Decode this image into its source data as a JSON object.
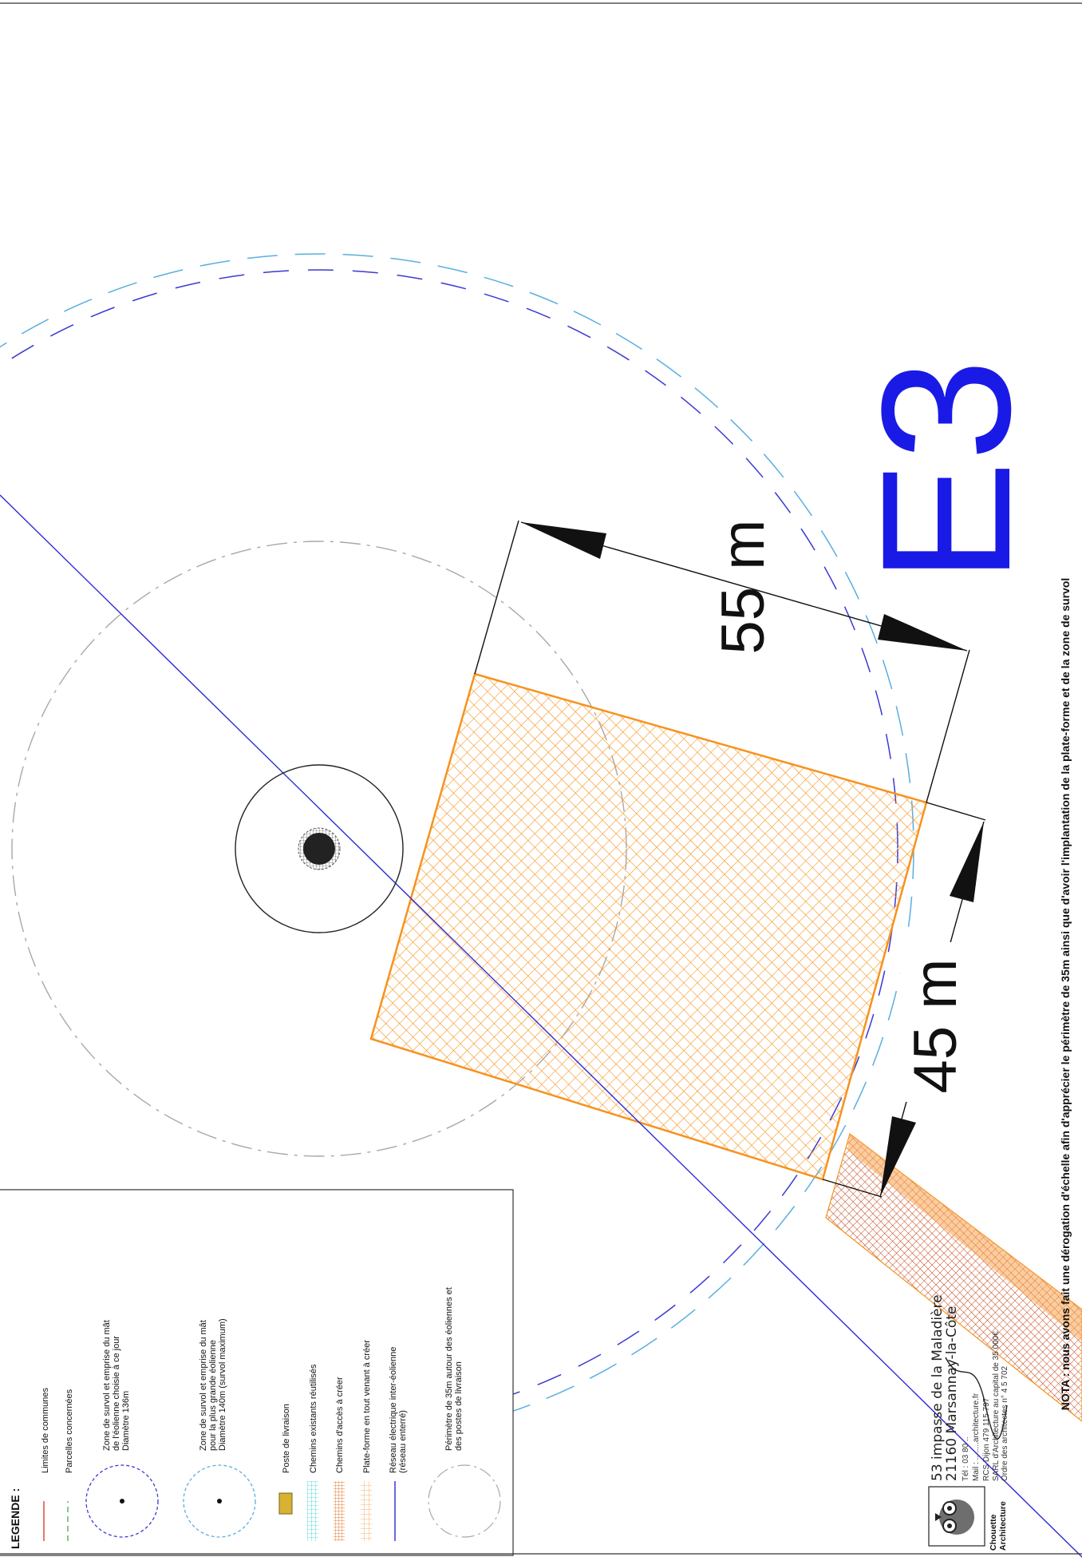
{
  "turbine_label": "E3",
  "dimension_long": "55 m",
  "dimension_short": "45 m",
  "nota": "NOTA : nous avons fait une dérogation  d'échelle afin d'apprécier le périmètre de 35m ainsi que d'avoir l'implantation de la plate-forme et de la zone de survol",
  "legend": {
    "title": "LEGENDE :",
    "items": [
      {
        "lines": [
          "Limites de communes"
        ],
        "symbol": "red-line-icon"
      },
      {
        "lines": [
          "Parcelles concernées"
        ],
        "symbol": "green-dashed-line-icon"
      },
      {
        "lines": [
          "Zone de survol et emprise du mât",
          "de l'éolienne choisie à ce jour",
          "Diamètre 136m"
        ],
        "symbol": "blue-dashed-circle-icon"
      },
      {
        "lines": [
          "Zone de survol et emprise du mât",
          "pour la plus grande éolienne",
          "Diamètre 140m (survol maximum)"
        ],
        "symbol": "cyan-dashed-circle-icon"
      },
      {
        "lines": [
          "Poste de livraison"
        ],
        "symbol": "delivery-post-icon"
      },
      {
        "lines": [
          "Chemins existants réutilisés"
        ],
        "symbol": "cyan-hatch-icon"
      },
      {
        "lines": [
          "Chemins d'accès à créer"
        ],
        "symbol": "orange-hatch-icon"
      },
      {
        "lines": [
          "Plate-forme en tout venant à créer"
        ],
        "symbol": "orange-grid-icon"
      },
      {
        "lines": [
          "Réseau électrique inter-éolienne",
          "(réseau enterré)"
        ],
        "symbol": "blue-line-icon"
      },
      {
        "lines": [
          "Périmètre de 35m autour des éoliennes et",
          "des postes de livraison"
        ],
        "symbol": "grey-dashed-circle-icon"
      }
    ]
  },
  "stamp": {
    "company_line1": "Chouette",
    "company_line2": "Architecture",
    "address1": "53 impasse de la Maladière",
    "address2": "21160  Marsannay-la-Côte",
    "tel": "Tél : 03 80 ..",
    "mail": "Mail : ........architecture.fr",
    "rcs": "RCS Dijon 479 115 797",
    "sarl": "SARL d'Architecture au capital de 35 000€",
    "ordre": "Ordre des architectes  n° 4 5 702"
  },
  "colors": {
    "platform": "#f7921e",
    "cable": "#2b2bd6",
    "label": "#1a1ae6",
    "survol_blue": "#3a3ad2",
    "survol_cyan": "#5aaee0",
    "perimeter": "#a8a8a8"
  }
}
